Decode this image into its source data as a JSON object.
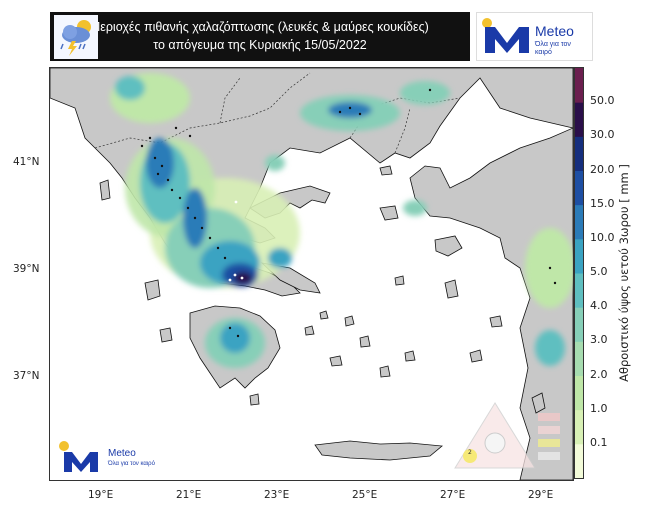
{
  "header": {
    "title_line1": "Περιοχές πιθανής χαλαζόπτωσης (λευκές & μαύρες κουκίδες)",
    "title_line2": "το απόγευμα της Κυριακής 15/05/2022",
    "logo_name": "Meteo",
    "logo_tagline": "Όλα για τον καιρό",
    "icon": "storm-cloud-icon"
  },
  "map": {
    "lat_labels": [
      "41°N",
      "39°N",
      "37°N"
    ],
    "lon_labels": [
      "19°E",
      "21°E",
      "23°E",
      "25°E",
      "27°E",
      "29°E"
    ],
    "land_color": "#c8c8c8",
    "sea_color": "#ffffff"
  },
  "colorbar": {
    "title": "Αθροιστικό ύψος υετού 3ωρου [ mm ]",
    "levels": [
      "0.1",
      "1.0",
      "2.0",
      "3.0",
      "4.0",
      "5.0",
      "10.0",
      "15.0",
      "20.0",
      "30.0",
      "50.0"
    ],
    "colors": [
      "#f3fbd9",
      "#d8f0b5",
      "#bfe7a8",
      "#a7dcb0",
      "#87cfb8",
      "#5fbfc0",
      "#3aa3c2",
      "#2b7bb8",
      "#1e4fa3",
      "#162f7e",
      "#2a0f4a",
      "#6b1f4f"
    ]
  },
  "watermark": {
    "logo_name": "Meteo",
    "logo_tagline": "Όλα για τον καιρό",
    "legend_number": "2"
  }
}
